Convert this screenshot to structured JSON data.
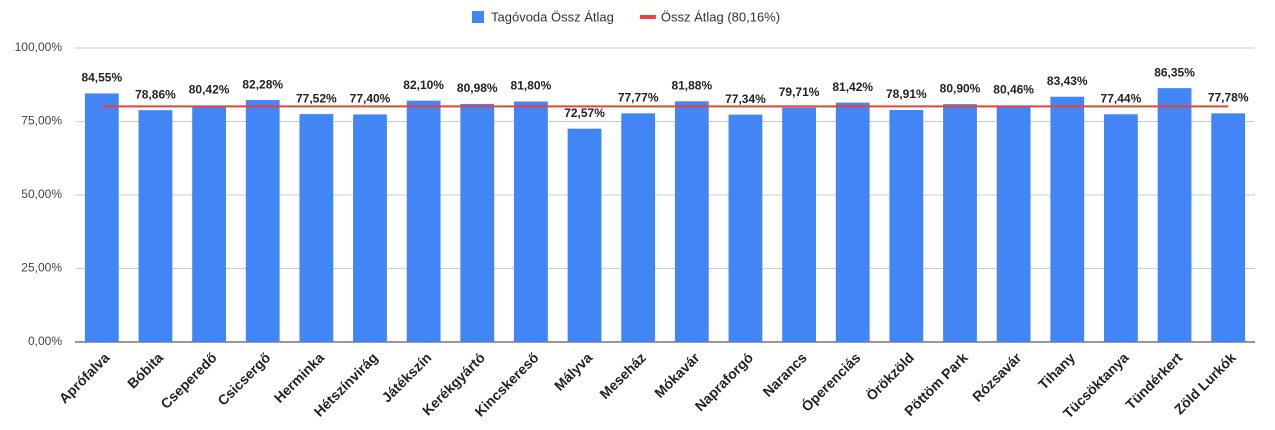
{
  "chart_data": {
    "type": "combo",
    "categories": [
      "Aprófalva",
      "Bóbita",
      "Cseperedő",
      "Csicsergő",
      "Herminka",
      "Hétszínvirág",
      "Játékszín",
      "Kerékgyártó",
      "Kincskereső",
      "Mályva",
      "Meseház",
      "Mókavár",
      "Napraforgó",
      "Narancs",
      "Óperenciás",
      "Örökzöld",
      "Pöttöm Park",
      "Rózsavár",
      "Tihany",
      "Tücsöktanya",
      "Tündérkert",
      "Zöld Lurkók"
    ],
    "series": [
      {
        "name": "Tagóvoda Össz Átlag",
        "type": "bar",
        "color": "#4285f4",
        "values": [
          84.55,
          78.86,
          80.42,
          82.28,
          77.52,
          77.4,
          82.1,
          80.98,
          81.8,
          72.57,
          77.77,
          81.88,
          77.34,
          79.71,
          81.42,
          78.91,
          80.9,
          80.46,
          83.43,
          77.44,
          86.35,
          77.78
        ],
        "value_labels": [
          "84,55%",
          "78,86%",
          "80,42%",
          "82,28%",
          "77,52%",
          "77,40%",
          "82,10%",
          "80,98%",
          "81,80%",
          "72,57%",
          "77,77%",
          "81,88%",
          "77,34%",
          "79,71%",
          "81,42%",
          "78,91%",
          "80,90%",
          "80,46%",
          "83,43%",
          "77,44%",
          "86,35%",
          "77,78%"
        ]
      },
      {
        "name": "Össz Átlag (80,16%)",
        "type": "line",
        "color": "#ea4335",
        "values": [
          80.16,
          80.16,
          80.16,
          80.16,
          80.16,
          80.16,
          80.16,
          80.16,
          80.16,
          80.16,
          80.16,
          80.16,
          80.16,
          80.16,
          80.16,
          80.16,
          80.16,
          80.16,
          80.16,
          80.16,
          80.16,
          80.16
        ]
      }
    ],
    "ylim": [
      0,
      100
    ],
    "yticks": [
      {
        "value": 0,
        "label": "0,00%"
      },
      {
        "value": 25,
        "label": "25,00%"
      },
      {
        "value": 50,
        "label": "50,00%"
      },
      {
        "value": 75,
        "label": "75,00%"
      },
      {
        "value": 100,
        "label": "100,00%"
      }
    ],
    "grid": true,
    "legend": "top"
  }
}
